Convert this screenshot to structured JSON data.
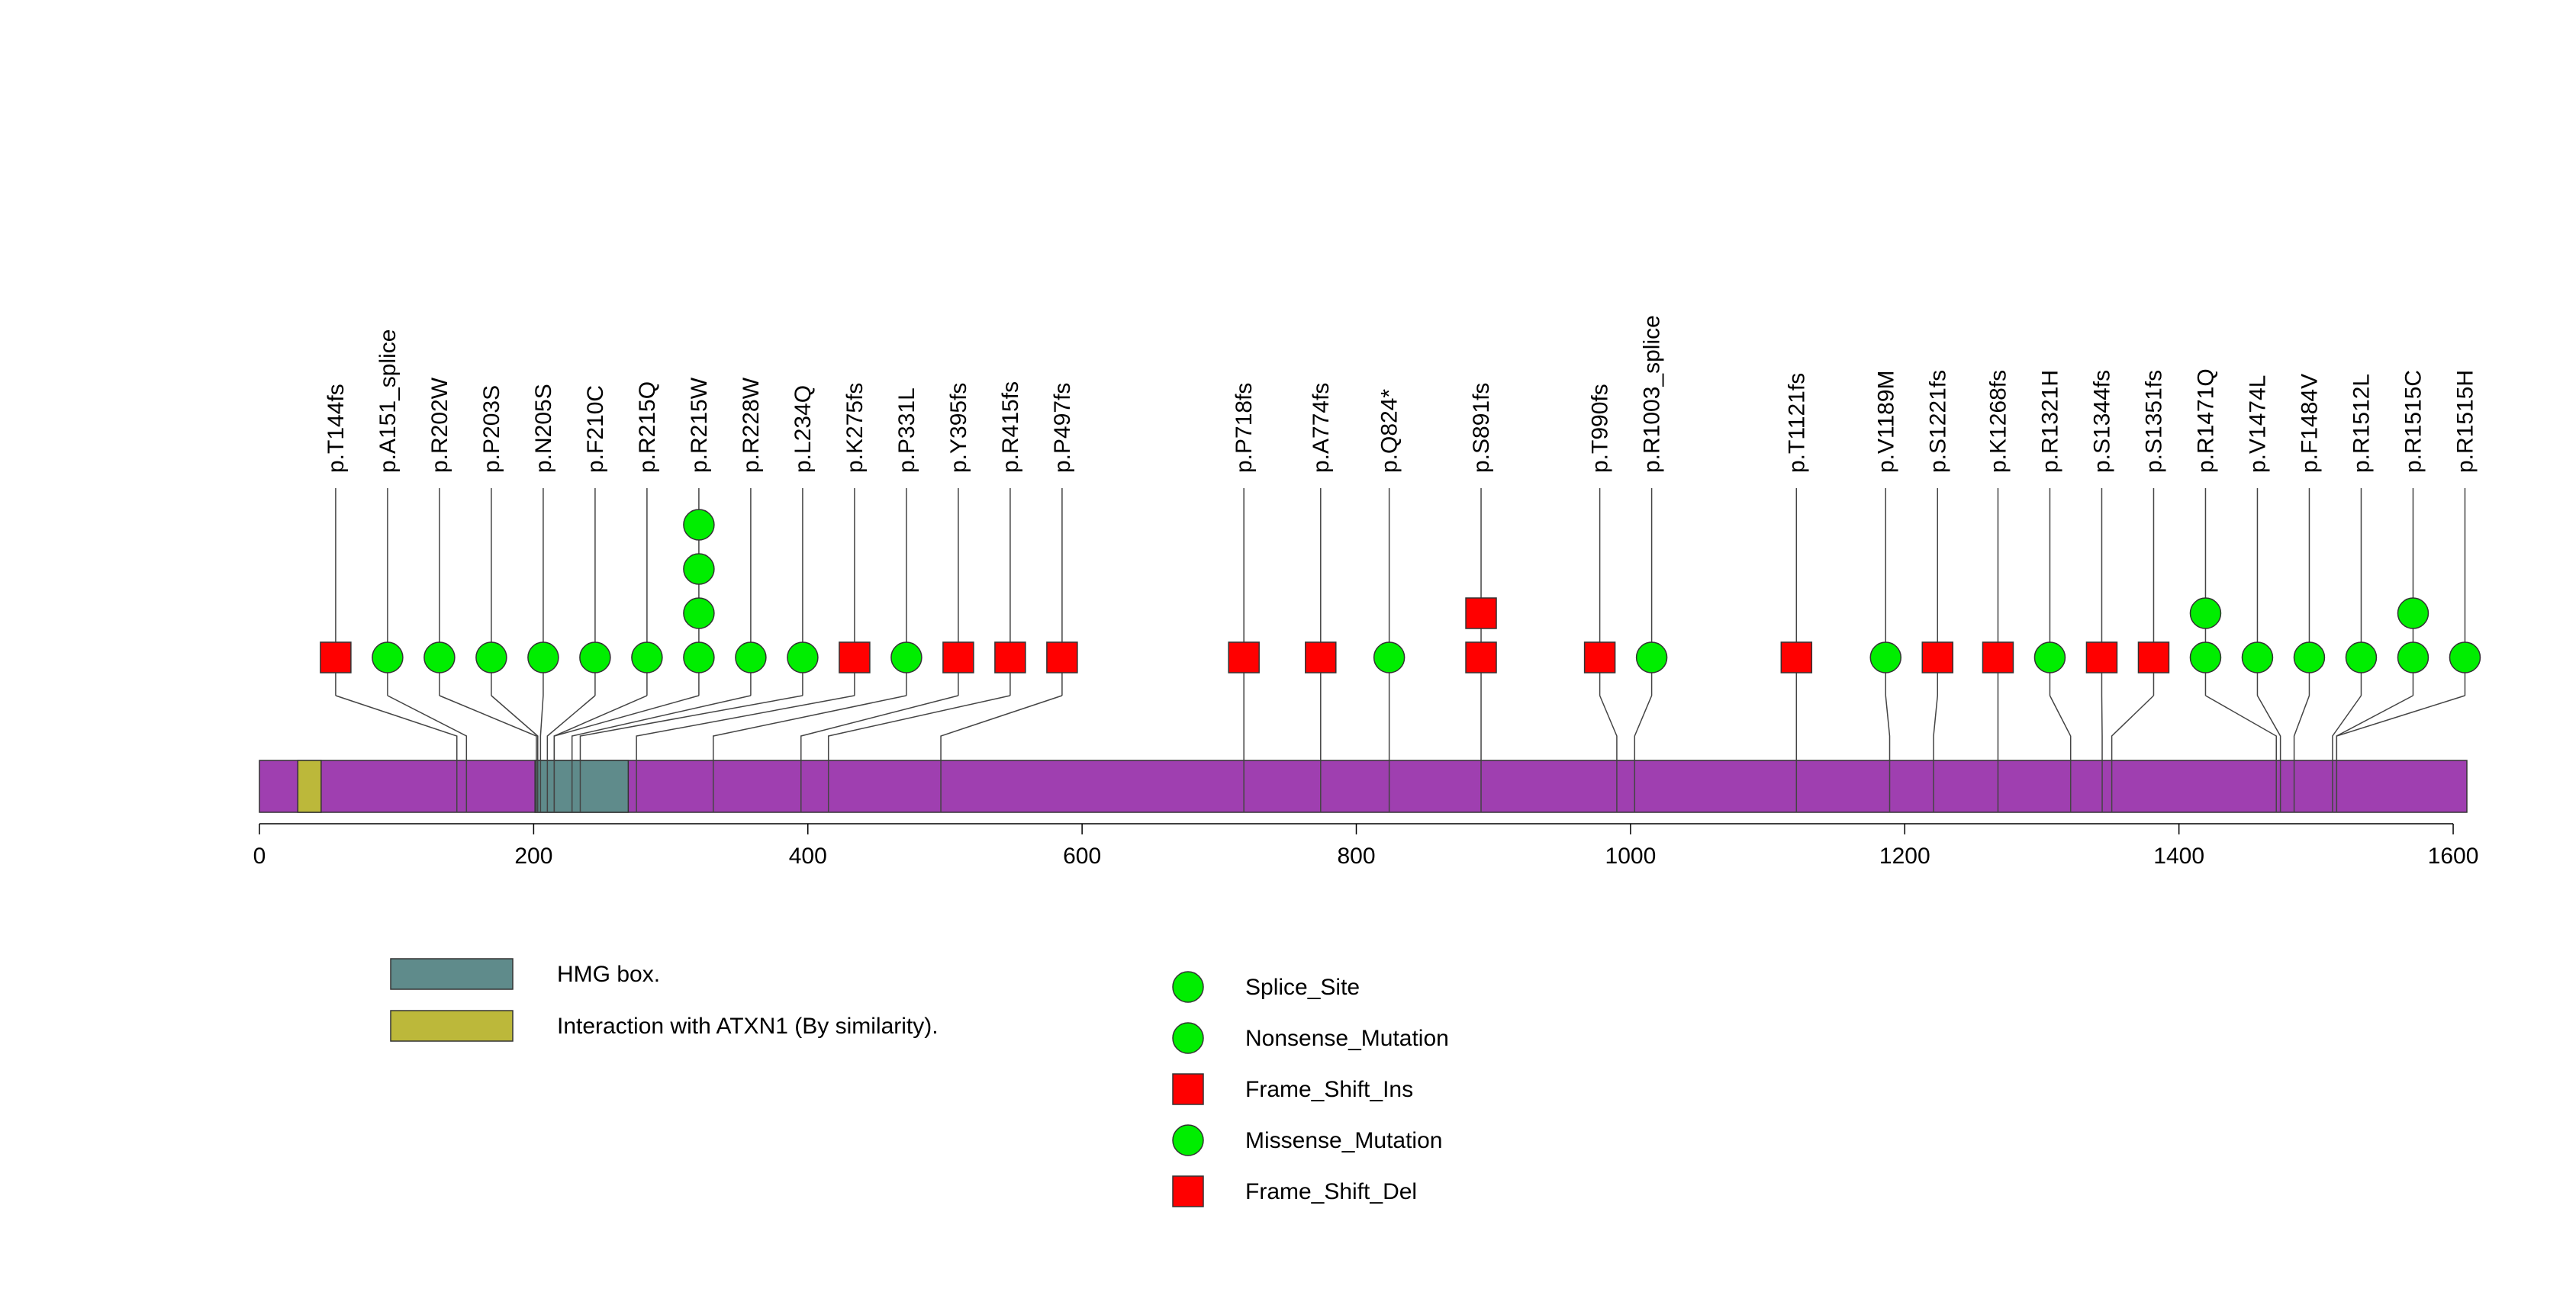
{
  "chart_data": {
    "type": "lollipop",
    "protein_length": 1610,
    "axis": {
      "xlim": [
        0,
        1610
      ],
      "ticks": [
        0,
        200,
        400,
        600,
        800,
        1000,
        1200,
        1400,
        1600
      ],
      "tick_labels": [
        "0",
        "200",
        "400",
        "600",
        "800",
        "1000",
        "1200",
        "1400",
        "1600"
      ]
    },
    "domains": [
      {
        "name": "HMG box.",
        "start": 201,
        "end": 269,
        "color": "#5f8b8b"
      },
      {
        "name": "Interaction with ATXN1 (By similarity).",
        "start": 28,
        "end": 45,
        "color": "#bcb83a"
      }
    ],
    "backbone_color": "#9f3fb0",
    "legend": {
      "domains": [
        {
          "label": "HMG box.",
          "color": "#5f8b8b"
        },
        {
          "label": "Interaction with ATXN1 (By similarity).",
          "color": "#bcb83a"
        }
      ],
      "mutation_types": [
        {
          "label": "Splice_Site",
          "shape": "circle",
          "color": "#00ee00"
        },
        {
          "label": "Nonsense_Mutation",
          "shape": "circle",
          "color": "#00ee00"
        },
        {
          "label": "Frame_Shift_Ins",
          "shape": "square",
          "color": "#ff0000"
        },
        {
          "label": "Missense_Mutation",
          "shape": "circle",
          "color": "#00ee00"
        },
        {
          "label": "Frame_Shift_Del",
          "shape": "square",
          "color": "#ff0000"
        }
      ]
    },
    "mutations": [
      {
        "label": "p.T144fs",
        "position": 144,
        "marks": [
          "square"
        ]
      },
      {
        "label": "p.A151_splice",
        "position": 151,
        "marks": [
          "circle"
        ]
      },
      {
        "label": "p.R202W",
        "position": 202,
        "marks": [
          "circle"
        ]
      },
      {
        "label": "p.P203S",
        "position": 203,
        "marks": [
          "circle"
        ]
      },
      {
        "label": "p.N205S",
        "position": 205,
        "marks": [
          "circle"
        ]
      },
      {
        "label": "p.F210C",
        "position": 210,
        "marks": [
          "circle"
        ]
      },
      {
        "label": "p.R215Q",
        "position": 215,
        "marks": [
          "circle"
        ]
      },
      {
        "label": "p.R215W",
        "position": 215,
        "marks": [
          "circle",
          "circle",
          "circle",
          "circle"
        ]
      },
      {
        "label": "p.R228W",
        "position": 228,
        "marks": [
          "circle"
        ]
      },
      {
        "label": "p.L234Q",
        "position": 234,
        "marks": [
          "circle"
        ]
      },
      {
        "label": "p.K275fs",
        "position": 275,
        "marks": [
          "square"
        ]
      },
      {
        "label": "p.P331L",
        "position": 331,
        "marks": [
          "circle"
        ]
      },
      {
        "label": "p.Y395fs",
        "position": 395,
        "marks": [
          "square"
        ]
      },
      {
        "label": "p.R415fs",
        "position": 415,
        "marks": [
          "square"
        ]
      },
      {
        "label": "p.P497fs",
        "position": 497,
        "marks": [
          "square"
        ]
      },
      {
        "label": "p.P718fs",
        "position": 718,
        "marks": [
          "square"
        ]
      },
      {
        "label": "p.A774fs",
        "position": 774,
        "marks": [
          "square"
        ]
      },
      {
        "label": "p.Q824*",
        "position": 824,
        "marks": [
          "circle"
        ]
      },
      {
        "label": "p.S891fs",
        "position": 891,
        "marks": [
          "square",
          "square"
        ]
      },
      {
        "label": "p.T990fs",
        "position": 990,
        "marks": [
          "square"
        ]
      },
      {
        "label": "p.R1003_splice",
        "position": 1003,
        "marks": [
          "circle"
        ]
      },
      {
        "label": "p.T1121fs",
        "position": 1121,
        "marks": [
          "square"
        ]
      },
      {
        "label": "p.V1189M",
        "position": 1189,
        "marks": [
          "circle"
        ]
      },
      {
        "label": "p.S1221fs",
        "position": 1221,
        "marks": [
          "square"
        ]
      },
      {
        "label": "p.K1268fs",
        "position": 1268,
        "marks": [
          "square"
        ]
      },
      {
        "label": "p.R1321H",
        "position": 1321,
        "marks": [
          "circle"
        ]
      },
      {
        "label": "p.S1344fs",
        "position": 1344,
        "marks": [
          "square"
        ]
      },
      {
        "label": "p.S1351fs",
        "position": 1351,
        "marks": [
          "square"
        ]
      },
      {
        "label": "p.R1471Q",
        "position": 1471,
        "marks": [
          "circle",
          "circle"
        ]
      },
      {
        "label": "p.V1474L",
        "position": 1474,
        "marks": [
          "circle"
        ]
      },
      {
        "label": "p.F1484V",
        "position": 1484,
        "marks": [
          "circle"
        ]
      },
      {
        "label": "p.R1512L",
        "position": 1512,
        "marks": [
          "circle"
        ]
      },
      {
        "label": "p.R1515C",
        "position": 1515,
        "marks": [
          "circle",
          "circle"
        ]
      },
      {
        "label": "p.R1515H",
        "position": 1515,
        "marks": [
          "circle"
        ]
      }
    ]
  }
}
